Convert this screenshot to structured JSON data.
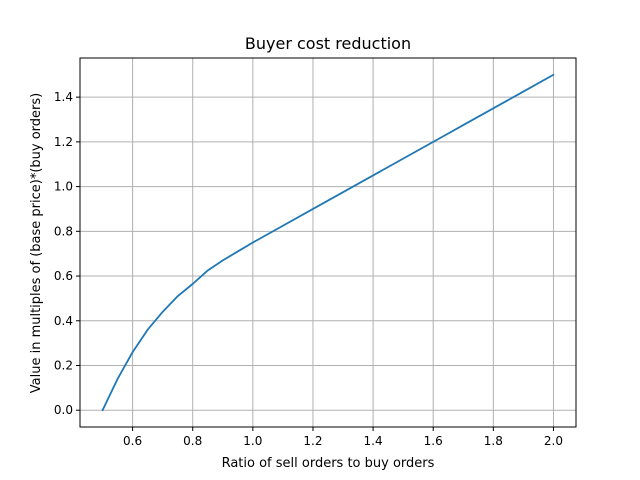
{
  "chart_data": {
    "type": "line",
    "title": "Buyer cost reduction",
    "xlabel": "Ratio of sell orders to buy orders",
    "ylabel": "Value in multiples of (base price)*(buy orders)",
    "xlim": [
      0.425,
      2.075
    ],
    "ylim": [
      -0.075,
      1.575
    ],
    "xticks": [
      0.6,
      0.8,
      1.0,
      1.2,
      1.4,
      1.6,
      1.8,
      2.0
    ],
    "xtick_labels": [
      "0.6",
      "0.8",
      "1.0",
      "1.2",
      "1.4",
      "1.6",
      "1.8",
      "2.0"
    ],
    "yticks": [
      0.0,
      0.2,
      0.4,
      0.6,
      0.8,
      1.0,
      1.2,
      1.4
    ],
    "ytick_labels": [
      "0.0",
      "0.2",
      "0.4",
      "0.6",
      "0.8",
      "1.0",
      "1.2",
      "1.4"
    ],
    "grid": true,
    "series": [
      {
        "color": "#1f77b4",
        "x": [
          0.5,
          0.55,
          0.6,
          0.65,
          0.7,
          0.75,
          0.8,
          0.85,
          0.9,
          0.95,
          1.0,
          1.1,
          1.2,
          1.3,
          1.4,
          1.5,
          1.6,
          1.7,
          1.8,
          1.9,
          2.0
        ],
        "y": [
          0.0,
          0.14,
          0.26,
          0.36,
          0.44,
          0.51,
          0.565,
          0.625,
          0.67,
          0.71,
          0.75,
          0.825,
          0.9,
          0.975,
          1.05,
          1.125,
          1.2,
          1.275,
          1.35,
          1.425,
          1.5
        ]
      }
    ]
  }
}
